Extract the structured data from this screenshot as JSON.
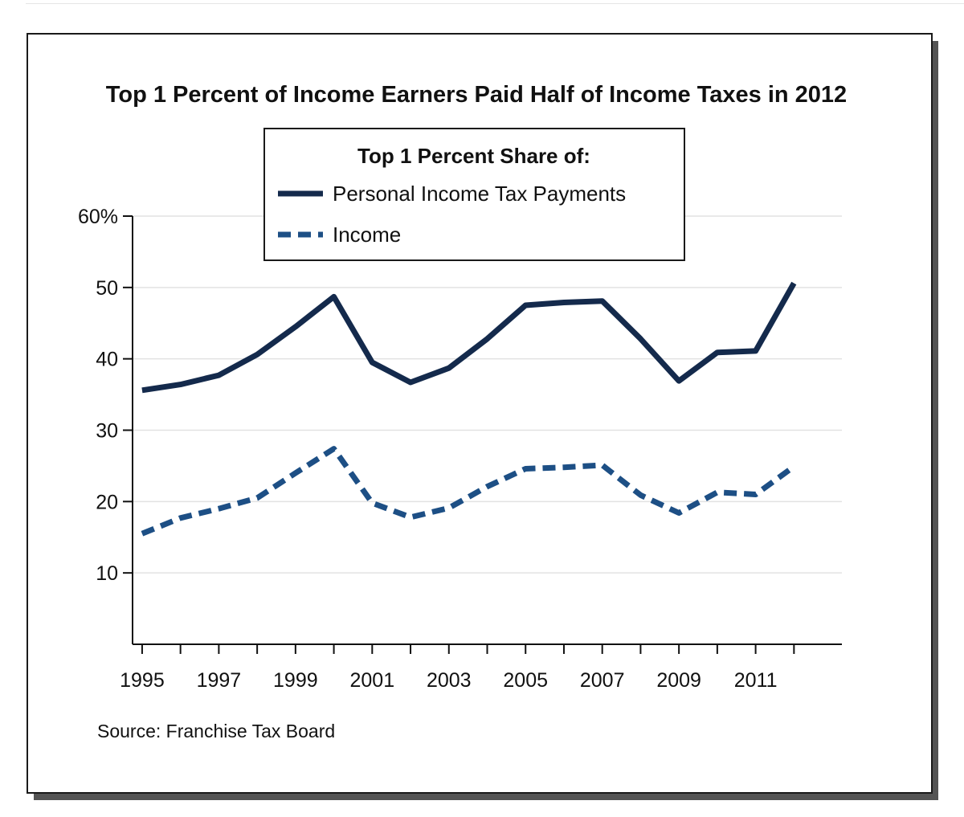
{
  "chart_data": {
    "type": "line",
    "title": "Top 1 Percent of Income Earners Paid Half of Income Taxes in 2012",
    "legend_title": "Top 1 Percent Share of:",
    "legend_position": "top-center",
    "xlabel": "",
    "ylabel": "",
    "x": [
      1995,
      1996,
      1997,
      1998,
      1999,
      2000,
      2001,
      2002,
      2003,
      2004,
      2005,
      2006,
      2007,
      2008,
      2009,
      2010,
      2011,
      2012
    ],
    "xlim": [
      1994.75,
      2013.25
    ],
    "ylim": [
      0,
      60
    ],
    "grid": true,
    "x_tick_values": [
      1995,
      1996,
      1997,
      1998,
      1999,
      2000,
      2001,
      2002,
      2003,
      2004,
      2005,
      2006,
      2007,
      2008,
      2009,
      2010,
      2011,
      2012
    ],
    "x_tick_labels": [
      {
        "value": 1995,
        "label": "1995"
      },
      {
        "value": 1997,
        "label": "1997"
      },
      {
        "value": 1999,
        "label": "1999"
      },
      {
        "value": 2001,
        "label": "2001"
      },
      {
        "value": 2003,
        "label": "2003"
      },
      {
        "value": 2005,
        "label": "2005"
      },
      {
        "value": 2007,
        "label": "2007"
      },
      {
        "value": 2009,
        "label": "2009"
      },
      {
        "value": 2011,
        "label": "2011"
      }
    ],
    "y_ticks": [
      {
        "value": 10,
        "label": "10"
      },
      {
        "value": 20,
        "label": "20"
      },
      {
        "value": 30,
        "label": "30"
      },
      {
        "value": 40,
        "label": "40"
      },
      {
        "value": 50,
        "label": "50"
      },
      {
        "value": 60,
        "label": "60%"
      }
    ],
    "series": [
      {
        "name": "Personal Income Tax Payments",
        "style": "solid",
        "color": "#142a4c",
        "values": [
          35.6,
          36.4,
          37.7,
          40.6,
          44.5,
          48.7,
          39.5,
          36.7,
          38.7,
          42.8,
          47.5,
          47.9,
          48.1,
          42.8,
          36.9,
          40.9,
          41.1,
          50.6
        ]
      },
      {
        "name": "Income",
        "style": "dashed",
        "color": "#1d4f85",
        "values": [
          15.5,
          17.7,
          19.0,
          20.5,
          24.0,
          27.4,
          19.8,
          17.8,
          19.1,
          22.1,
          24.6,
          24.8,
          25.1,
          20.9,
          18.4,
          21.3,
          21.0,
          24.9
        ]
      }
    ],
    "source": "Source: Franchise Tax Board"
  }
}
